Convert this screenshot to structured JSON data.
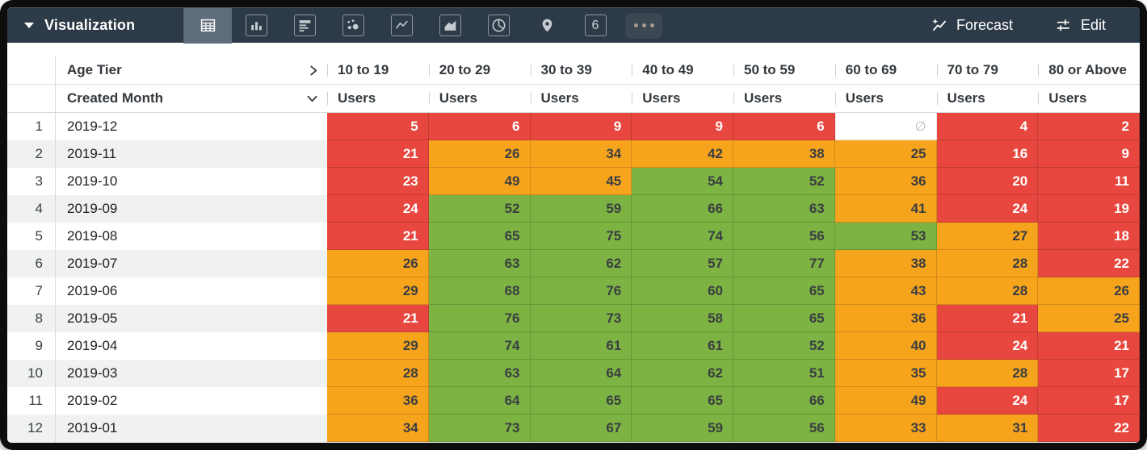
{
  "toolbar": {
    "title": "Visualization",
    "forecast_label": "Forecast",
    "edit_label": "Edit",
    "viz_types": [
      {
        "name": "table",
        "selected": true
      },
      {
        "name": "bar",
        "selected": false
      },
      {
        "name": "row",
        "selected": false
      },
      {
        "name": "scatter",
        "selected": false
      },
      {
        "name": "line",
        "selected": false
      },
      {
        "name": "area",
        "selected": false
      },
      {
        "name": "pie",
        "selected": false
      },
      {
        "name": "map",
        "selected": false
      },
      {
        "name": "single-value",
        "glyph": "6",
        "selected": false
      },
      {
        "name": "more",
        "selected": false
      }
    ]
  },
  "theme": {
    "toolbar_bg": "#2d3a47",
    "selected_viz_bg": "#5f6d7a",
    "toolbar_text": "#ffffff",
    "header_border": "#d8dade"
  },
  "table": {
    "pivot_field": "Age Tier",
    "dimension_field": "Created Month",
    "measure_label": "Users",
    "null_symbol": "∅",
    "columns": [
      "10 to 19",
      "20 to 29",
      "30 to 39",
      "40 to 49",
      "50 to 59",
      "60 to 69",
      "70 to 79",
      "80 or Above"
    ],
    "conditional_colors": {
      "low": "#e8473f",
      "mid": "#f7a41d",
      "high": "#7cb342",
      "low_max": 24,
      "high_min": 50
    },
    "rows": [
      {
        "n": 1,
        "month": "2019-12",
        "values": [
          5,
          6,
          9,
          9,
          6,
          null,
          4,
          2
        ]
      },
      {
        "n": 2,
        "month": "2019-11",
        "values": [
          21,
          26,
          34,
          42,
          38,
          25,
          16,
          9
        ]
      },
      {
        "n": 3,
        "month": "2019-10",
        "values": [
          23,
          49,
          45,
          54,
          52,
          36,
          20,
          11
        ]
      },
      {
        "n": 4,
        "month": "2019-09",
        "values": [
          24,
          52,
          59,
          66,
          63,
          41,
          24,
          19
        ]
      },
      {
        "n": 5,
        "month": "2019-08",
        "values": [
          21,
          65,
          75,
          74,
          56,
          53,
          27,
          18
        ]
      },
      {
        "n": 6,
        "month": "2019-07",
        "values": [
          26,
          63,
          62,
          57,
          77,
          38,
          28,
          22
        ]
      },
      {
        "n": 7,
        "month": "2019-06",
        "values": [
          29,
          68,
          76,
          60,
          65,
          43,
          28,
          26
        ]
      },
      {
        "n": 8,
        "month": "2019-05",
        "values": [
          21,
          76,
          73,
          58,
          65,
          36,
          21,
          25
        ]
      },
      {
        "n": 9,
        "month": "2019-04",
        "values": [
          29,
          74,
          61,
          61,
          52,
          40,
          24,
          21
        ]
      },
      {
        "n": 10,
        "month": "2019-03",
        "values": [
          28,
          63,
          64,
          62,
          51,
          35,
          28,
          17
        ]
      },
      {
        "n": 11,
        "month": "2019-02",
        "values": [
          36,
          64,
          65,
          65,
          66,
          49,
          24,
          17
        ]
      },
      {
        "n": 12,
        "month": "2019-01",
        "values": [
          34,
          73,
          67,
          59,
          56,
          33,
          31,
          22
        ]
      }
    ]
  }
}
